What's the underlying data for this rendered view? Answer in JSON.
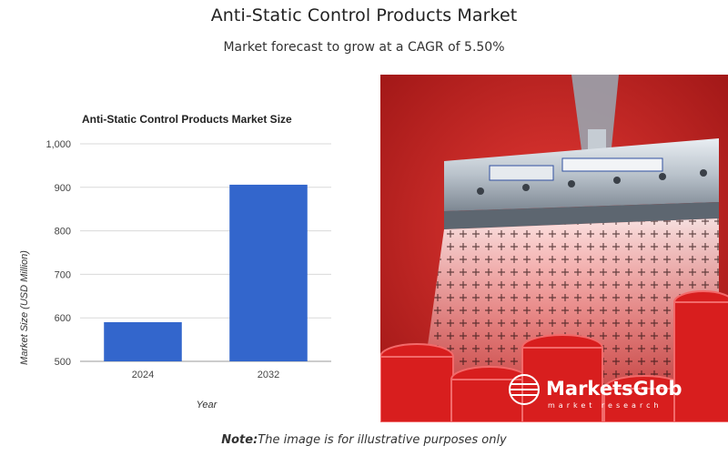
{
  "header": {
    "title": "Anti-Static Control Products Market",
    "subtitle": "Market forecast to grow at a CAGR of 5.50%"
  },
  "chart_data": {
    "type": "bar",
    "title": "Anti-Static Control Products Market Size",
    "categories": [
      "2024",
      "2032"
    ],
    "values": [
      590,
      906
    ],
    "xlabel": "Year",
    "ylabel": "Market Size (USD Million)",
    "ylim": [
      500,
      1000
    ],
    "yticks": [
      500,
      600,
      700,
      800,
      900,
      1000
    ],
    "ytick_labels": [
      "500",
      "600",
      "700",
      "800",
      "900",
      "1,000"
    ],
    "grid": true,
    "legend": "none",
    "bar_color": "#3366cc"
  },
  "image": {
    "brand_name": "MarketsGlob",
    "brand_tagline": "market research"
  },
  "footer": {
    "note_label": "Note:",
    "note_text": "The image is for illustrative purposes only"
  }
}
